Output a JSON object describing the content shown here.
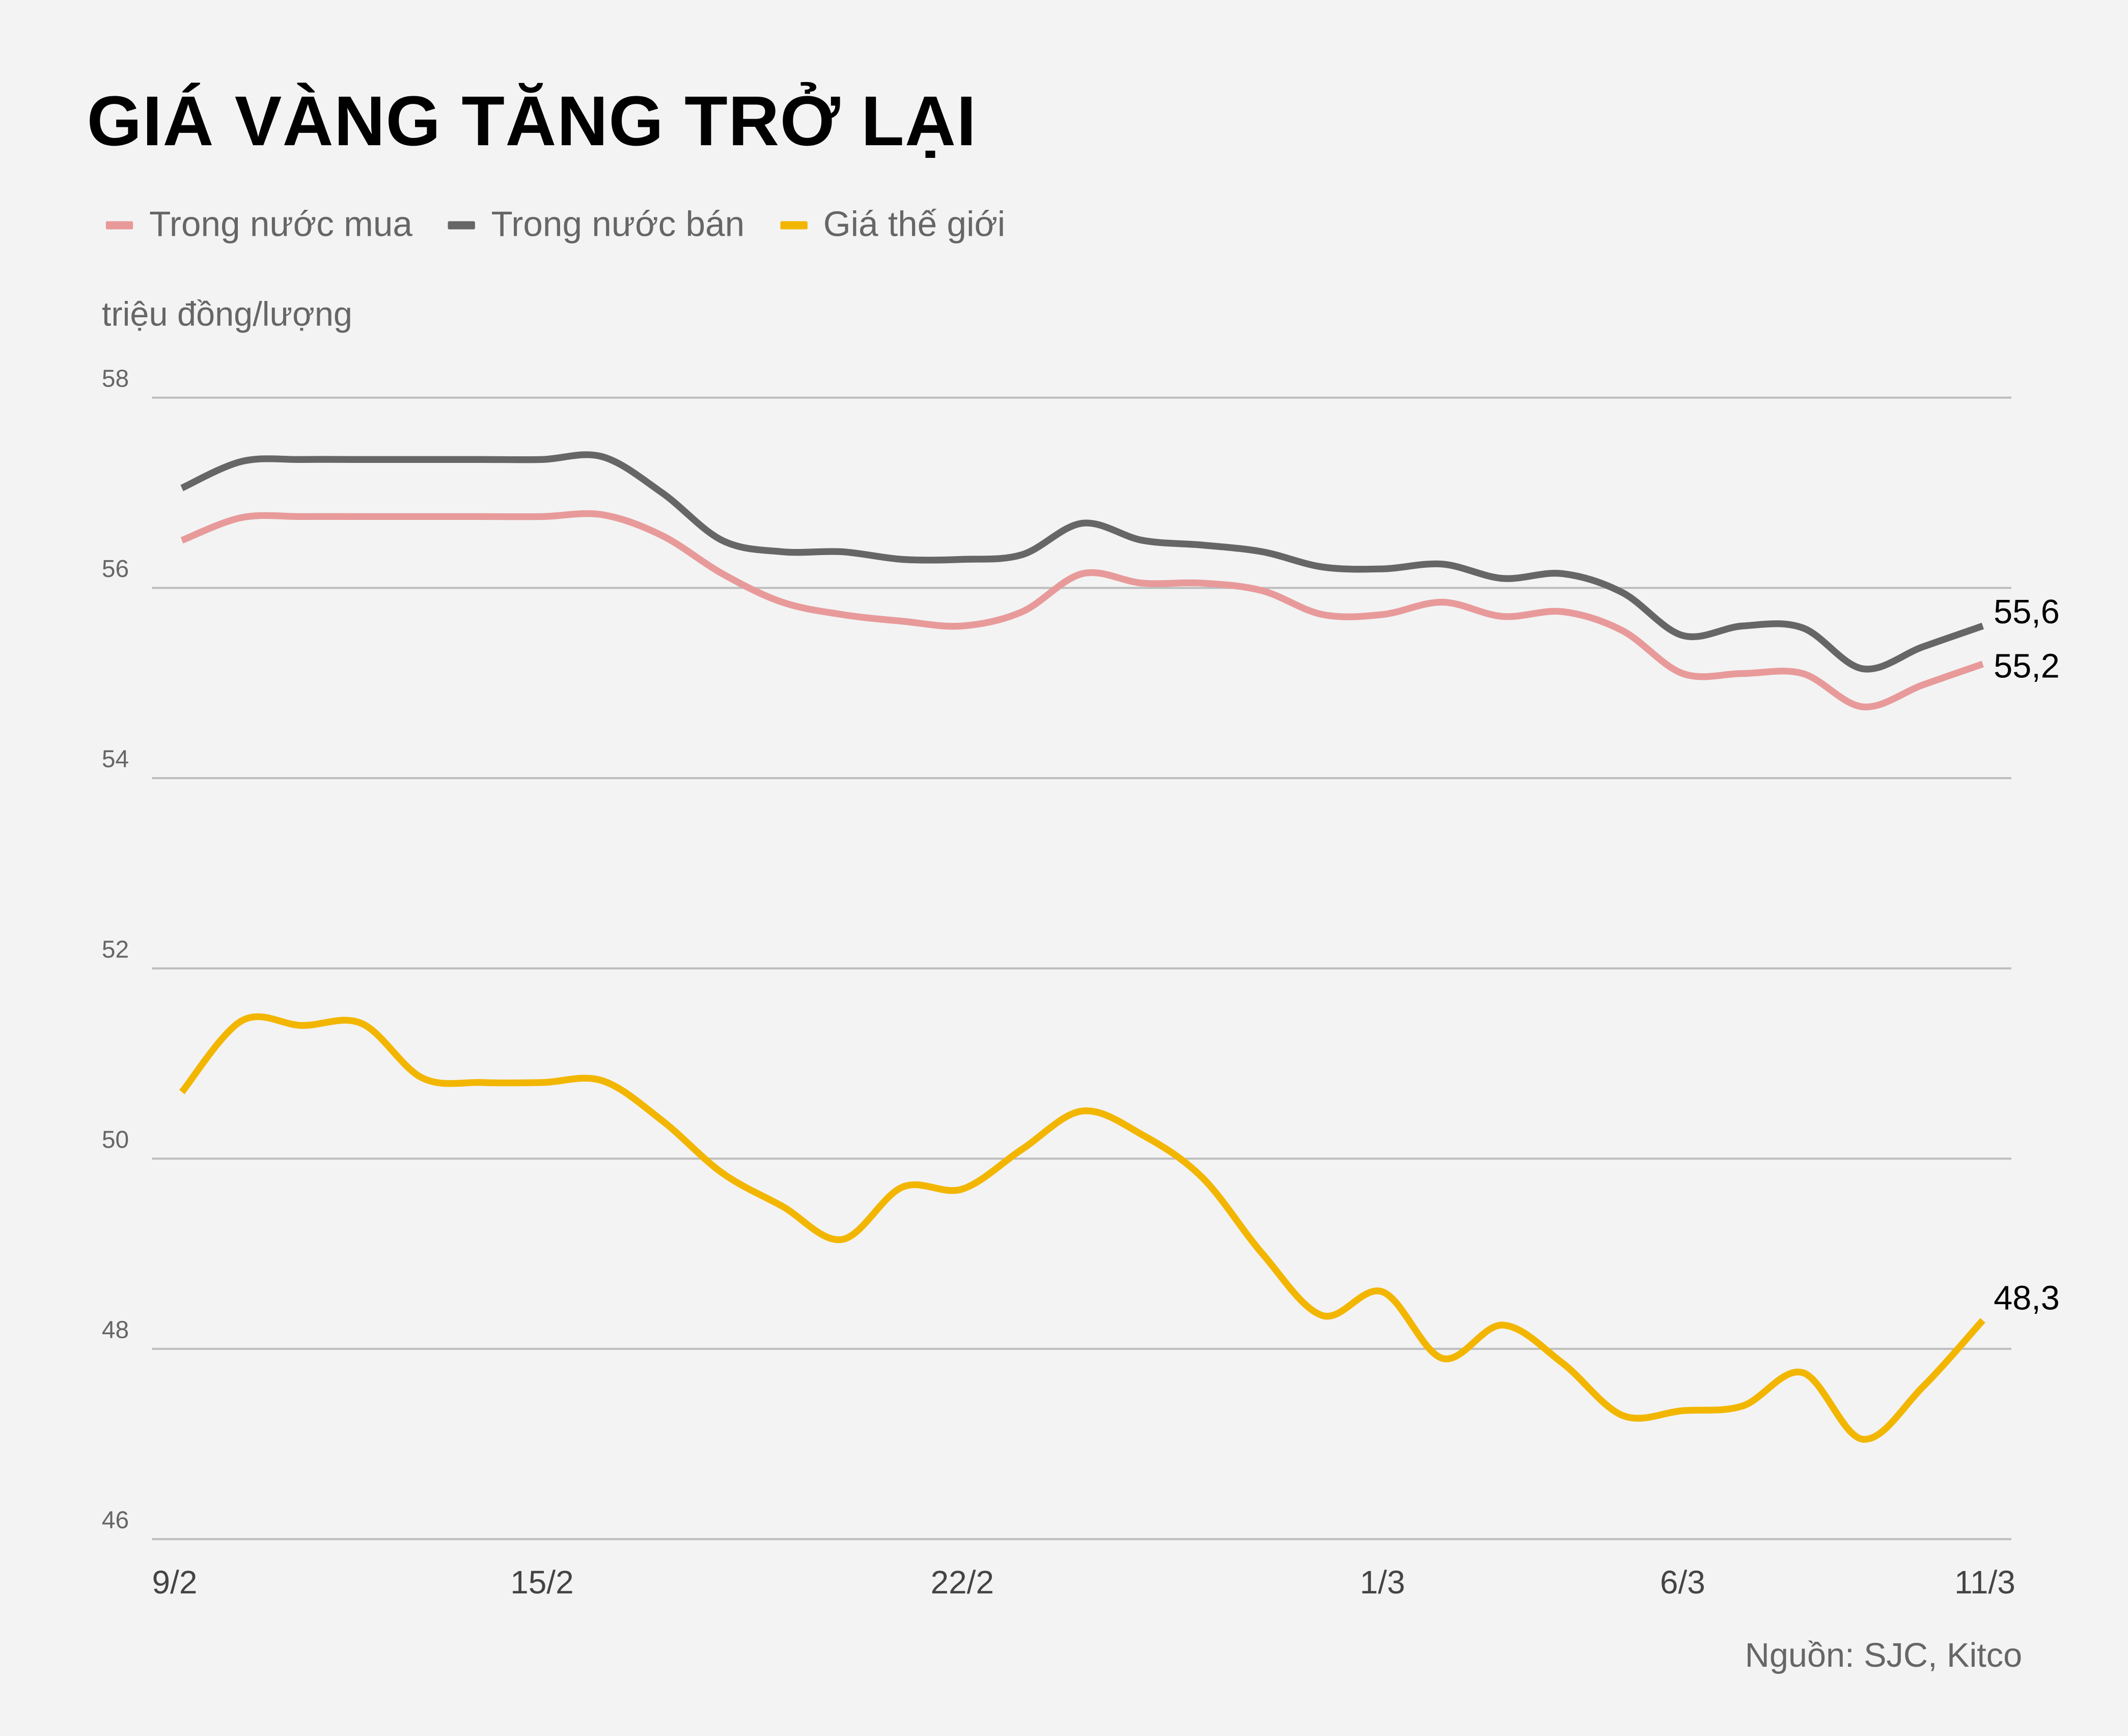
{
  "chart_data": {
    "type": "line",
    "title": "GIÁ VÀNG TĂNG TRỞ LẠI",
    "ylabel": "triệu đồng/lượng",
    "xlabel": "",
    "source": "Nguồn: SJC, Kitco",
    "ylim": [
      46,
      58
    ],
    "yticks": [
      "46",
      "48",
      "50",
      "52",
      "54",
      "56",
      "58"
    ],
    "grid": true,
    "legend_position": "top-left",
    "x": [
      "9/2",
      "10/2",
      "11/2",
      "12/2",
      "13/2",
      "14/2",
      "15/2",
      "16/2",
      "17/2",
      "18/2",
      "19/2",
      "20/2",
      "21/2",
      "22/2",
      "23/2",
      "24/2",
      "25/2",
      "26/2",
      "27/2",
      "28/2",
      "1/3",
      "2/3",
      "3/3",
      "4/3",
      "5/3",
      "6/3",
      "7/3",
      "8/3",
      "9/3",
      "10/3",
      "11/3"
    ],
    "xticks": [
      "9/2",
      "15/2",
      "22/2",
      "1/3",
      "6/3",
      "11/3"
    ],
    "series": [
      {
        "name": "Trong nước mua",
        "color": "#e89a9a",
        "values": [
          56.5,
          56.74,
          56.75,
          56.75,
          56.75,
          56.75,
          56.75,
          56.77,
          56.55,
          56.15,
          55.85,
          55.72,
          55.65,
          55.6,
          55.75,
          56.15,
          56.05,
          56.05,
          55.97,
          55.72,
          55.72,
          55.85,
          55.7,
          55.75,
          55.55,
          55.1,
          55.1,
          55.1,
          54.75,
          54.98,
          55.2
        ],
        "end_label": "55,2"
      },
      {
        "name": "Trong nước bán",
        "color": "#666666",
        "values": [
          57.05,
          57.33,
          57.35,
          57.35,
          57.35,
          57.35,
          57.35,
          57.38,
          57.0,
          56.5,
          56.38,
          56.38,
          56.3,
          56.3,
          56.35,
          56.68,
          56.5,
          56.45,
          56.38,
          56.22,
          56.2,
          56.25,
          56.1,
          56.15,
          55.95,
          55.5,
          55.6,
          55.58,
          55.15,
          55.38,
          55.6
        ],
        "end_label": "55,6"
      },
      {
        "name": "Giá thế giới",
        "color": "#f2b600",
        "values": [
          50.7,
          51.45,
          51.4,
          51.42,
          50.85,
          50.8,
          50.8,
          50.82,
          50.4,
          49.85,
          49.5,
          49.15,
          49.7,
          49.68,
          50.1,
          50.5,
          50.25,
          49.8,
          49.0,
          48.35,
          48.6,
          47.9,
          48.25,
          47.85,
          47.3,
          47.35,
          47.4,
          47.75,
          47.05,
          47.6,
          48.3
        ],
        "end_label": "48,3"
      }
    ]
  }
}
